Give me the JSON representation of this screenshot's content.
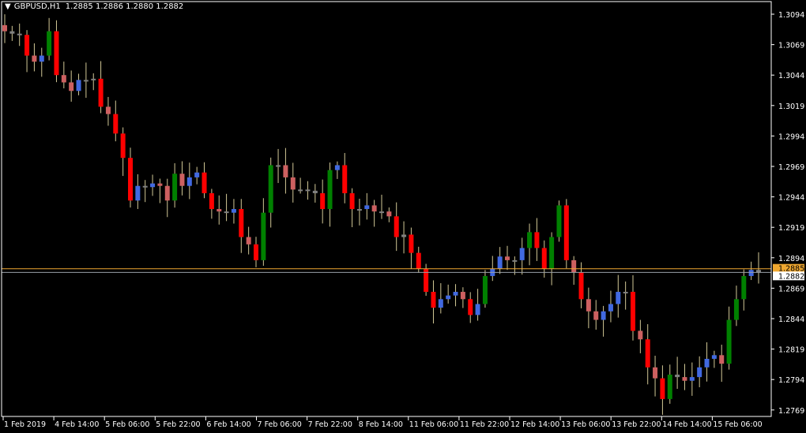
{
  "header": {
    "menu_icon": "triangle-down-icon",
    "symbol": "GBPUSD,H1",
    "ohlc": "1.2885 1.2886 1.2880 1.2882"
  },
  "colors": {
    "background": "#000000",
    "axis": "#ffffff",
    "strong_down": "#ff0000",
    "weak_down": "#cd6060",
    "neutral": "#808080",
    "weak_up": "#4169e1",
    "strong_up": "#008000",
    "wick": "#d2c896",
    "ask_line": "#f0a830",
    "bid_line": "#9aa0a8"
  },
  "chart_data": {
    "type": "candlestick",
    "timeframe": "H1",
    "ylim": [
      1.2765,
      1.3105
    ],
    "y_ticks": [
      "1.3094",
      "1.3069",
      "1.3044",
      "1.3019",
      "1.2994",
      "1.2969",
      "1.2944",
      "1.2919",
      "1.2894",
      "1.2869",
      "1.2844",
      "1.2819",
      "1.2794",
      "1.2769"
    ],
    "x_ticks": [
      "1 Feb 2019",
      "4 Feb 14:00",
      "5 Feb 06:00",
      "5 Feb 22:00",
      "6 Feb 14:00",
      "7 Feb 06:00",
      "7 Feb 22:00",
      "8 Feb 14:00",
      "11 Feb 06:00",
      "11 Feb 22:00",
      "12 Feb 14:00",
      "13 Feb 06:00",
      "13 Feb 22:00",
      "14 Feb 14:00",
      "15 Feb 06:00"
    ],
    "ask_price": "1.2885",
    "bid_price": "1.2882",
    "closes_approx": [
      1.308,
      1.3078,
      1.3077,
      1.306,
      1.3055,
      1.306,
      1.308,
      1.3044,
      1.3038,
      1.3031,
      1.304,
      1.304,
      1.3041,
      1.3018,
      1.3012,
      1.2996,
      1.2976,
      1.2941,
      1.2953,
      1.2952,
      1.2955,
      1.2953,
      1.2941,
      1.2963,
      1.2953,
      1.296,
      1.2964,
      1.2947,
      1.2934,
      1.2932,
      1.2931,
      1.2934,
      1.2911,
      1.2905,
      1.2892,
      1.2931,
      1.297,
      1.297,
      1.296,
      1.295,
      1.295,
      1.2949,
      1.2947,
      1.2934,
      1.2966,
      1.297,
      1.2947,
      1.2934,
      1.2934,
      1.2937,
      1.2932,
      1.2932,
      1.2928,
      1.2911,
      1.2913,
      1.2898,
      1.2885,
      1.2866,
      1.2853,
      1.286,
      1.2863,
      1.2866,
      1.286,
      1.2847,
      1.2856,
      1.2879,
      1.2885,
      1.2895,
      1.2892,
      1.2892,
      1.2902,
      1.2915,
      1.2902,
      1.2885,
      1.2911,
      1.2937,
      1.2892,
      1.2882,
      1.286,
      1.285,
      1.2843,
      1.285,
      1.2856,
      1.2866,
      1.2866,
      1.2834,
      1.2827,
      1.2804,
      1.2795,
      1.2778,
      1.2798,
      1.2796,
      1.2793,
      1.2796,
      1.2804,
      1.2811,
      1.2814,
      1.2807,
      1.2843,
      1.286,
      1.2879,
      1.2884,
      1.2882
    ]
  }
}
